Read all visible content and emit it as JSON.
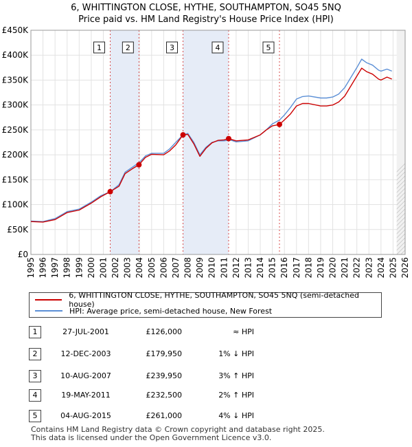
{
  "title_line1": "6, WHITTINGTON CLOSE, HYTHE, SOUTHAMPTON, SO45 5NQ",
  "title_line2": "Price paid vs. HM Land Registry's House Price Index (HPI)",
  "colors": {
    "price_line": "#cc0000",
    "hpi_line": "#5b8fd6",
    "shade": "#e6ecf7",
    "vline": "#cc0000"
  },
  "chart_data": {
    "type": "line",
    "title": "Price paid vs. HM Land Registry's House Price Index (HPI)",
    "xlabel": "",
    "ylabel": "",
    "xlim": [
      1995,
      2026
    ],
    "ylim": [
      0,
      450000
    ],
    "y_ticks": [
      {
        "value": 0,
        "label": "£0"
      },
      {
        "value": 50000,
        "label": "£50K"
      },
      {
        "value": 100000,
        "label": "£100K"
      },
      {
        "value": 150000,
        "label": "£150K"
      },
      {
        "value": 200000,
        "label": "£200K"
      },
      {
        "value": 250000,
        "label": "£250K"
      },
      {
        "value": 300000,
        "label": "£300K"
      },
      {
        "value": 350000,
        "label": "£350K"
      },
      {
        "value": 400000,
        "label": "£400K"
      },
      {
        "value": 450000,
        "label": "£450K"
      }
    ],
    "x_ticks": [
      "1995",
      "1996",
      "1997",
      "1998",
      "1999",
      "2000",
      "2001",
      "2002",
      "2003",
      "2004",
      "2005",
      "2006",
      "2007",
      "2008",
      "2009",
      "2010",
      "2011",
      "2012",
      "2013",
      "2014",
      "2015",
      "2016",
      "2017",
      "2018",
      "2019",
      "2020",
      "2021",
      "2022",
      "2023",
      "2024",
      "2025",
      "2026"
    ],
    "data_end": 2025.3,
    "series": [
      {
        "name": "HPI: Average price, semi-detached house, New Forest",
        "color": "#5b8fd6",
        "points": [
          [
            1995.0,
            67000
          ],
          [
            1996.0,
            66000
          ],
          [
            1997.0,
            72000
          ],
          [
            1998.0,
            86000
          ],
          [
            1999.0,
            91000
          ],
          [
            2000.0,
            105000
          ],
          [
            2000.8,
            118000
          ],
          [
            2001.6,
            126000
          ],
          [
            2002.3,
            140000
          ],
          [
            2002.8,
            165000
          ],
          [
            2003.4,
            175000
          ],
          [
            2004.0,
            185000
          ],
          [
            2004.5,
            198000
          ],
          [
            2005.0,
            203000
          ],
          [
            2006.0,
            203000
          ],
          [
            2006.5,
            212000
          ],
          [
            2007.0,
            225000
          ],
          [
            2007.6,
            240000
          ],
          [
            2008.0,
            243000
          ],
          [
            2008.5,
            225000
          ],
          [
            2009.0,
            200000
          ],
          [
            2009.5,
            215000
          ],
          [
            2010.0,
            225000
          ],
          [
            2010.5,
            228000
          ],
          [
            2011.0,
            228000
          ],
          [
            2011.5,
            230000
          ],
          [
            2012.0,
            226000
          ],
          [
            2013.0,
            228000
          ],
          [
            2014.0,
            240000
          ],
          [
            2014.5,
            250000
          ],
          [
            2015.0,
            262000
          ],
          [
            2015.6,
            270000
          ],
          [
            2016.0,
            280000
          ],
          [
            2016.5,
            295000
          ],
          [
            2017.0,
            312000
          ],
          [
            2017.5,
            317000
          ],
          [
            2018.0,
            318000
          ],
          [
            2019.0,
            314000
          ],
          [
            2019.5,
            314000
          ],
          [
            2020.0,
            316000
          ],
          [
            2020.5,
            322000
          ],
          [
            2021.0,
            335000
          ],
          [
            2021.5,
            355000
          ],
          [
            2022.0,
            375000
          ],
          [
            2022.4,
            392000
          ],
          [
            2022.8,
            385000
          ],
          [
            2023.3,
            380000
          ],
          [
            2023.8,
            370000
          ],
          [
            2024.0,
            368000
          ],
          [
            2024.5,
            372000
          ],
          [
            2024.9,
            368000
          ]
        ]
      },
      {
        "name": "6, WHITTINGTON CLOSE, HYTHE, SOUTHAMPTON, SO45 5NQ (semi-detached house)",
        "color": "#cc0000",
        "points": [
          [
            1995.0,
            66000
          ],
          [
            1996.0,
            65000
          ],
          [
            1997.0,
            70000
          ],
          [
            1998.0,
            84000
          ],
          [
            1999.0,
            89000
          ],
          [
            2000.0,
            103000
          ],
          [
            2000.8,
            116000
          ],
          [
            2001.57,
            126000
          ],
          [
            2002.3,
            137000
          ],
          [
            2002.8,
            162000
          ],
          [
            2003.4,
            172000
          ],
          [
            2003.95,
            179950
          ],
          [
            2004.5,
            195000
          ],
          [
            2005.0,
            201000
          ],
          [
            2006.0,
            200000
          ],
          [
            2006.5,
            208000
          ],
          [
            2007.0,
            220000
          ],
          [
            2007.6,
            239950
          ],
          [
            2008.0,
            241000
          ],
          [
            2008.5,
            222000
          ],
          [
            2009.0,
            197000
          ],
          [
            2009.5,
            213000
          ],
          [
            2010.0,
            224000
          ],
          [
            2010.5,
            229000
          ],
          [
            2011.0,
            230000
          ],
          [
            2011.38,
            232500
          ],
          [
            2012.0,
            228000
          ],
          [
            2013.0,
            230000
          ],
          [
            2014.0,
            240000
          ],
          [
            2014.5,
            250000
          ],
          [
            2015.0,
            258000
          ],
          [
            2015.59,
            261000
          ],
          [
            2016.0,
            270000
          ],
          [
            2016.5,
            282000
          ],
          [
            2017.0,
            298000
          ],
          [
            2017.5,
            303000
          ],
          [
            2018.0,
            303000
          ],
          [
            2019.0,
            298000
          ],
          [
            2019.5,
            298000
          ],
          [
            2020.0,
            300000
          ],
          [
            2020.5,
            306000
          ],
          [
            2021.0,
            318000
          ],
          [
            2021.5,
            338000
          ],
          [
            2022.0,
            358000
          ],
          [
            2022.4,
            374000
          ],
          [
            2022.8,
            367000
          ],
          [
            2023.3,
            362000
          ],
          [
            2023.8,
            352000
          ],
          [
            2024.0,
            350000
          ],
          [
            2024.5,
            356000
          ],
          [
            2024.9,
            352000
          ]
        ]
      }
    ],
    "sales": [
      {
        "num": "1",
        "x": 2001.57,
        "price": 126000
      },
      {
        "num": "2",
        "x": 2003.95,
        "price": 179950
      },
      {
        "num": "3",
        "x": 2007.6,
        "price": 239950
      },
      {
        "num": "4",
        "x": 2011.38,
        "price": 232500
      },
      {
        "num": "5",
        "x": 2015.59,
        "price": 261000
      }
    ],
    "shaded_spans": [
      [
        2001.57,
        2003.95
      ],
      [
        2007.6,
        2011.38
      ],
      [
        2015.59,
        2015.59
      ]
    ]
  },
  "legend": {
    "price_label": "6, WHITTINGTON CLOSE, HYTHE, SOUTHAMPTON, SO45 5NQ (semi-detached house)",
    "hpi_label": "HPI: Average price, semi-detached house, New Forest"
  },
  "transactions": [
    {
      "num": "1",
      "date": "27-JUL-2001",
      "price": "£126,000",
      "hpi": "≈ HPI"
    },
    {
      "num": "2",
      "date": "12-DEC-2003",
      "price": "£179,950",
      "hpi": "1% ↓ HPI"
    },
    {
      "num": "3",
      "date": "10-AUG-2007",
      "price": "£239,950",
      "hpi": "3% ↑ HPI"
    },
    {
      "num": "4",
      "date": "19-MAY-2011",
      "price": "£232,500",
      "hpi": "2% ↑ HPI"
    },
    {
      "num": "5",
      "date": "04-AUG-2015",
      "price": "£261,000",
      "hpi": "4% ↓ HPI"
    }
  ],
  "footer_line1": "Contains HM Land Registry data © Crown copyright and database right 2025.",
  "footer_line2": "This data is licensed under the Open Government Licence v3.0."
}
